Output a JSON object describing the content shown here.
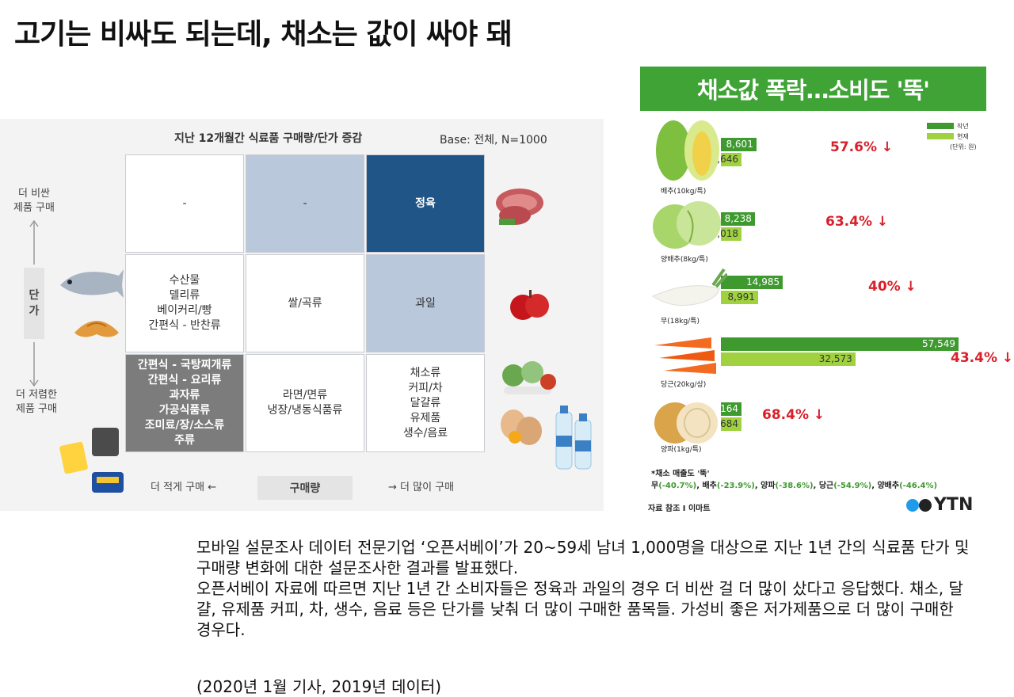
{
  "slide": {
    "title": "고기는 비싸도 되는데, 채소는 값이 싸야 돼"
  },
  "matrix": {
    "title": "지난 12개월간 식료품 구매량/단가 증감",
    "base": "Base: 전체, N=1000",
    "y_axis": {
      "top": "더 비싼\n제품 구매",
      "bottom": "더 저렴한\n제품 구매",
      "label": "단\n가"
    },
    "x_axis": {
      "left": "더 적게 구매 ←",
      "label": "구매량",
      "right": "→ 더 많이 구매"
    },
    "cells": [
      [
        "-",
        "-",
        "정육"
      ],
      [
        "수산물\n델리류\n베이커리/빵\n간편식 - 반찬류",
        "쌀/곡류",
        "과일"
      ],
      [
        "간편식 - 국탕찌개류\n간편식 - 요리류\n과자류\n가공식품류\n조미료/장/소스류\n주류",
        "라면/면류\n냉장/냉동식품류",
        "채소류\n커피/차\n달걀류\n유제품\n생수/음료"
      ]
    ],
    "cell_colors": [
      [
        "#ffffff",
        "#b9c8da",
        "#1f5587"
      ],
      [
        "#ffffff",
        "#ffffff",
        "#b9c8da"
      ],
      [
        "#7c7c7c",
        "#ffffff",
        "#ffffff"
      ]
    ]
  },
  "chart_data": {
    "type": "bar",
    "title": "채소값 폭락…소비도 '뚝'",
    "categories": [
      "배추(10kg/특)",
      "양배추(8kg/특)",
      "무(18kg/특)",
      "당근(20kg/상)",
      "양파(1kg/특)"
    ],
    "series": [
      {
        "name": "작년",
        "values": [
          8601,
          8238,
          14985,
          57549,
          2164
        ],
        "color": "#3e9a2f"
      },
      {
        "name": "현재",
        "values": [
          3646,
          3018,
          8991,
          32573,
          684
        ],
        "color": "#9fd23e"
      }
    ],
    "value_labels": {
      "작년": [
        "8,601",
        "8,238",
        "14,985",
        "57,549",
        "2,164"
      ],
      "현재": [
        "3,646",
        "3,018",
        "8,991",
        "32,573",
        "684"
      ]
    },
    "changes": [
      "57.6% ↓",
      "63.4% ↓",
      "40% ↓",
      "43.4%  ↓",
      "68.4% ↓"
    ],
    "unit": "(단위: 원)",
    "note": "*채소 매출도 '뚝'",
    "detail": [
      {
        "name": "무",
        "value": "(-40.7%)"
      },
      {
        "name": "배추",
        "value": "(-23.9%)"
      },
      {
        "name": "양파",
        "value": "(-38.6%)"
      },
      {
        "name": "당근",
        "value": "(-54.9%)"
      },
      {
        "name": "양배추",
        "value": "(-46.4%)"
      }
    ],
    "source": "자료 참조 I 이마트",
    "logo": "YTN"
  },
  "body": {
    "paragraph1": "모바일 설문조사 데이터 전문기업 ‘오픈서베이’가 20~59세 남녀 1,000명을 대상으로 지난 1년 간의 식료품 단가 및 구매량 변화에 대한 설문조사한 결과를 발표했다.",
    "paragraph2": "오픈서베이 자료에 따르면 지난 1년 간 소비자들은 정육과 과일의 경우 더 비싼 걸 더 많이 샀다고 응답했다. 채소, 달걀, 유제품 커피, 차, 생수, 음료 등은 단가를 낮춰 더 많이 구매한 품목들. 가성비 좋은 저가제품으로 더 많이 구매한 경우다.",
    "footnote": "(2020년 1월 기사, 2019년 데이터)"
  }
}
